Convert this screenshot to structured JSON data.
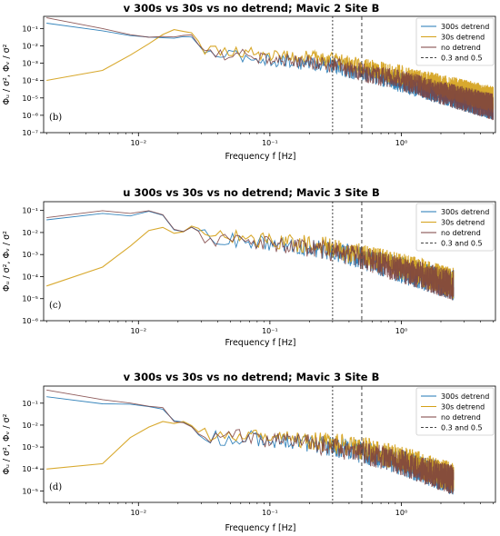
{
  "chart_data": [
    {
      "type": "line",
      "title": "v 300s vs 30s vs no detrend; Mavic 2 Site B",
      "xlabel": "Frequency  f  [Hz]",
      "ylabel": "Φᵤ / σ², Φᵥ / σ²",
      "panel_label": "(b)",
      "x_scale": "log",
      "y_scale": "log",
      "xlim": [
        0.0019,
        5.2
      ],
      "ylim": [
        1e-07,
        0.5
      ],
      "x_ticks": [
        "10⁻²",
        "10⁻¹",
        "10⁰"
      ],
      "y_ticks": [
        "10⁻⁷",
        "10⁻⁶",
        "10⁻⁵",
        "10⁻⁴",
        "10⁻³",
        "10⁻²",
        "10⁻¹"
      ],
      "legend_position": "top-right",
      "vlines": [
        0.3,
        0.5
      ],
      "series": [
        {
          "name": "300s detrend",
          "color": "#1f77b4",
          "points": [
            [
              0.002,
              0.2
            ],
            [
              0.0033,
              0.2
            ],
            [
              0.005,
              0.08
            ],
            [
              0.0067,
              0.05
            ],
            [
              0.01,
              0.035
            ],
            [
              0.013,
              0.028
            ],
            [
              0.017,
              0.03
            ],
            [
              0.02,
              0.025
            ],
            [
              0.023,
              0.04
            ],
            [
              0.027,
              0.03
            ],
            [
              0.03,
              0.005
            ],
            [
              0.04,
              0.003
            ],
            [
              0.06,
              0.0025
            ],
            [
              0.1,
              0.0015
            ],
            [
              0.2,
              0.001
            ],
            [
              0.3,
              0.0007
            ],
            [
              0.5,
              0.0003
            ],
            [
              1,
              8e-05
            ],
            [
              2,
              2e-05
            ],
            [
              5,
              3e-06
            ]
          ]
        },
        {
          "name": "30s detrend",
          "color": "#d4a017",
          "points": [
            [
              0.002,
              0.0001
            ],
            [
              0.0033,
              0.0001
            ],
            [
              0.005,
              0.0003
            ],
            [
              0.0067,
              0.001
            ],
            [
              0.01,
              0.005
            ],
            [
              0.013,
              0.02
            ],
            [
              0.017,
              0.08
            ],
            [
              0.02,
              0.1
            ],
            [
              0.023,
              0.06
            ],
            [
              0.027,
              0.06
            ],
            [
              0.03,
              0.008
            ],
            [
              0.04,
              0.006
            ],
            [
              0.06,
              0.005
            ],
            [
              0.1,
              0.003
            ],
            [
              0.2,
              0.002
            ],
            [
              0.3,
              0.0015
            ],
            [
              0.5,
              0.0006
            ],
            [
              1,
              0.0002
            ],
            [
              2,
              5e-05
            ],
            [
              5,
              8e-06
            ]
          ]
        },
        {
          "name": "no detrend",
          "color": "#7b3f3f",
          "points": [
            [
              0.002,
              0.4
            ],
            [
              0.0033,
              0.4
            ],
            [
              0.005,
              0.12
            ],
            [
              0.0067,
              0.06
            ],
            [
              0.01,
              0.04
            ],
            [
              0.013,
              0.03
            ],
            [
              0.017,
              0.035
            ],
            [
              0.02,
              0.03
            ],
            [
              0.023,
              0.05
            ],
            [
              0.027,
              0.035
            ],
            [
              0.03,
              0.005
            ],
            [
              0.04,
              0.0035
            ],
            [
              0.06,
              0.003
            ],
            [
              0.1,
              0.0018
            ],
            [
              0.2,
              0.0012
            ],
            [
              0.3,
              0.0008
            ],
            [
              0.5,
              0.0003
            ],
            [
              1,
              0.0001
            ],
            [
              2,
              2e-05
            ],
            [
              5,
              3e-06
            ]
          ]
        },
        {
          "name": "0.3 and 0.5",
          "color": "#444444",
          "style": "dashed"
        }
      ]
    },
    {
      "type": "line",
      "title": "u 300s vs 30s vs no detrend; Mavic 3 Site B",
      "xlabel": "Frequency  f  [Hz]",
      "ylabel": "Φᵤ / σ², Φᵥ / σ²",
      "panel_label": "(c)",
      "x_scale": "log",
      "y_scale": "log",
      "xlim": [
        0.0019,
        5.2
      ],
      "ylim": [
        1e-06,
        0.25
      ],
      "x_ticks": [
        "10⁻²",
        "10⁻¹",
        "10⁰"
      ],
      "y_ticks": [
        "10⁻⁶",
        "10⁻⁵",
        "10⁻⁴",
        "10⁻³",
        "10⁻²",
        "10⁻¹"
      ],
      "legend_position": "top-right",
      "vlines": [
        0.3,
        0.5
      ],
      "series": [
        {
          "name": "300s detrend",
          "color": "#1f77b4",
          "points": [
            [
              0.002,
              0.04
            ],
            [
              0.0033,
              0.04
            ],
            [
              0.005,
              0.08
            ],
            [
              0.0067,
              0.06
            ],
            [
              0.01,
              0.06
            ],
            [
              0.013,
              0.1
            ],
            [
              0.017,
              0.04
            ],
            [
              0.02,
              0.006
            ],
            [
              0.023,
              0.015
            ],
            [
              0.027,
              0.02
            ],
            [
              0.03,
              0.008
            ],
            [
              0.04,
              0.005
            ],
            [
              0.06,
              0.004
            ],
            [
              0.1,
              0.003
            ],
            [
              0.2,
              0.002
            ],
            [
              0.3,
              0.0015
            ],
            [
              0.5,
              0.0007
            ],
            [
              1,
              0.0002
            ],
            [
              2.5,
              4e-05
            ]
          ]
        },
        {
          "name": "30s detrend",
          "color": "#d4a017",
          "points": [
            [
              0.002,
              4e-05
            ],
            [
              0.0033,
              4e-05
            ],
            [
              0.005,
              0.0002
            ],
            [
              0.0067,
              0.001
            ],
            [
              0.01,
              0.004
            ],
            [
              0.013,
              0.02
            ],
            [
              0.017,
              0.015
            ],
            [
              0.02,
              0.006
            ],
            [
              0.023,
              0.015
            ],
            [
              0.027,
              0.025
            ],
            [
              0.03,
              0.01
            ],
            [
              0.04,
              0.006
            ],
            [
              0.06,
              0.006
            ],
            [
              0.1,
              0.004
            ],
            [
              0.2,
              0.003
            ],
            [
              0.3,
              0.002
            ],
            [
              0.5,
              0.0009
            ],
            [
              1,
              0.0003
            ],
            [
              2.5,
              5e-05
            ]
          ]
        },
        {
          "name": "no detrend",
          "color": "#7b3f3f",
          "points": [
            [
              0.002,
              0.05
            ],
            [
              0.0033,
              0.05
            ],
            [
              0.005,
              0.1
            ],
            [
              0.0067,
              0.07
            ],
            [
              0.01,
              0.07
            ],
            [
              0.013,
              0.12
            ],
            [
              0.017,
              0.045
            ],
            [
              0.02,
              0.006
            ],
            [
              0.023,
              0.016
            ],
            [
              0.027,
              0.02
            ],
            [
              0.03,
              0.008
            ],
            [
              0.04,
              0.005
            ],
            [
              0.06,
              0.0045
            ],
            [
              0.1,
              0.003
            ],
            [
              0.2,
              0.002
            ],
            [
              0.3,
              0.0015
            ],
            [
              0.5,
              0.0007
            ],
            [
              1,
              0.0002
            ],
            [
              2.5,
              4e-05
            ]
          ]
        },
        {
          "name": "0.3 and 0.5",
          "color": "#444444",
          "style": "dashed"
        }
      ]
    },
    {
      "type": "line",
      "title": "v 300s vs 30s vs no detrend; Mavic 3 Site B",
      "xlabel": "Frequency  f  [Hz]",
      "ylabel": "Φᵤ / σ², Φᵥ / σ²",
      "panel_label": "(d)",
      "x_scale": "log",
      "y_scale": "log",
      "xlim": [
        0.0019,
        5.2
      ],
      "ylim": [
        3e-06,
        0.6
      ],
      "x_ticks": [
        "10⁻²",
        "10⁻¹",
        "10⁰"
      ],
      "y_ticks": [
        "10⁻⁵",
        "10⁻⁴",
        "10⁻³",
        "10⁻²",
        "10⁻¹"
      ],
      "legend_position": "top-right",
      "vlines": [
        0.3,
        0.5
      ],
      "series": [
        {
          "name": "300s detrend",
          "color": "#1f77b4",
          "points": [
            [
              0.002,
              0.2
            ],
            [
              0.0033,
              0.2
            ],
            [
              0.005,
              0.1
            ],
            [
              0.0067,
              0.1
            ],
            [
              0.01,
              0.08
            ],
            [
              0.013,
              0.06
            ],
            [
              0.017,
              0.05
            ],
            [
              0.02,
              0.006
            ],
            [
              0.023,
              0.02
            ],
            [
              0.027,
              0.005
            ],
            [
              0.03,
              0.003
            ],
            [
              0.04,
              0.0025
            ],
            [
              0.06,
              0.003
            ],
            [
              0.1,
              0.002
            ],
            [
              0.2,
              0.0015
            ],
            [
              0.3,
              0.001
            ],
            [
              0.5,
              0.0006
            ],
            [
              1,
              0.0002
            ],
            [
              2.5,
              3e-05
            ]
          ]
        },
        {
          "name": "30s detrend",
          "color": "#d4a017",
          "points": [
            [
              0.002,
              0.0001
            ],
            [
              0.0033,
              0.0001
            ],
            [
              0.005,
              0.0001
            ],
            [
              0.0067,
              0.001
            ],
            [
              0.01,
              0.005
            ],
            [
              0.013,
              0.01
            ],
            [
              0.017,
              0.02
            ],
            [
              0.02,
              0.008
            ],
            [
              0.023,
              0.02
            ],
            [
              0.027,
              0.006
            ],
            [
              0.03,
              0.004
            ],
            [
              0.04,
              0.003
            ],
            [
              0.06,
              0.004
            ],
            [
              0.1,
              0.003
            ],
            [
              0.2,
              0.002
            ],
            [
              0.3,
              0.0015
            ],
            [
              0.5,
              0.0009
            ],
            [
              1,
              0.0003
            ],
            [
              2.5,
              4e-05
            ]
          ]
        },
        {
          "name": "no detrend",
          "color": "#7b3f3f",
          "points": [
            [
              0.002,
              0.4
            ],
            [
              0.0033,
              0.4
            ],
            [
              0.005,
              0.15
            ],
            [
              0.0067,
              0.12
            ],
            [
              0.01,
              0.09
            ],
            [
              0.013,
              0.07
            ],
            [
              0.017,
              0.055
            ],
            [
              0.02,
              0.006
            ],
            [
              0.023,
              0.02
            ],
            [
              0.027,
              0.005
            ],
            [
              0.03,
              0.003
            ],
            [
              0.04,
              0.0025
            ],
            [
              0.06,
              0.003
            ],
            [
              0.1,
              0.002
            ],
            [
              0.2,
              0.0015
            ],
            [
              0.3,
              0.001
            ],
            [
              0.5,
              0.0006
            ],
            [
              1,
              0.0002
            ],
            [
              2.5,
              3e-05
            ]
          ]
        },
        {
          "name": "0.3 and 0.5",
          "color": "#444444",
          "style": "dashed"
        }
      ]
    }
  ]
}
